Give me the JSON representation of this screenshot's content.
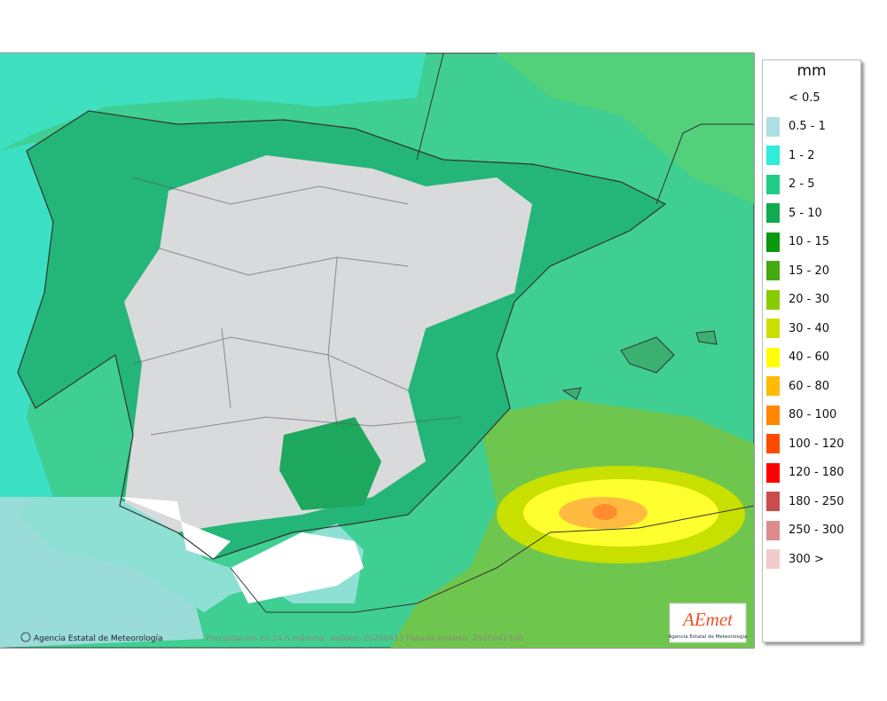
{
  "legend": {
    "unit": "mm",
    "items": [
      {
        "label": "< 0.5",
        "color": "#ffffff"
      },
      {
        "label": "0.5 - 1",
        "color": "#acdfe3"
      },
      {
        "label": "1 - 2",
        "color": "#30ecd8"
      },
      {
        "label": "2 - 5",
        "color": "#20cc88"
      },
      {
        "label": "5 - 10",
        "color": "#10aa50"
      },
      {
        "label": "10 - 15",
        "color": "#0b990f"
      },
      {
        "label": "15 - 20",
        "color": "#44aa11"
      },
      {
        "label": "20 - 30",
        "color": "#88cc00"
      },
      {
        "label": "30 - 40",
        "color": "#c8e000"
      },
      {
        "label": "40 - 60",
        "color": "#ffff00"
      },
      {
        "label": "60 - 80",
        "color": "#ffbb00"
      },
      {
        "label": "80 - 100",
        "color": "#ff8800"
      },
      {
        "label": "100 - 120",
        "color": "#ff4a00"
      },
      {
        "label": "120 - 180",
        "color": "#ff0000"
      },
      {
        "label": "180 - 250",
        "color": "#cc4c4c"
      },
      {
        "label": "250 - 300",
        "color": "#dd8c8c"
      },
      {
        "label": "300 >",
        "color": "#f2cccc"
      }
    ]
  },
  "credit": "Agencia Estatal de Meteorología",
  "caption": "Precipitación en 24 h máxima. Validez: 20260413 Pasada modelo: 2026041300",
  "logo": {
    "name": "AEmet",
    "subtitle": "Agencia Estatal de Meteorología"
  }
}
